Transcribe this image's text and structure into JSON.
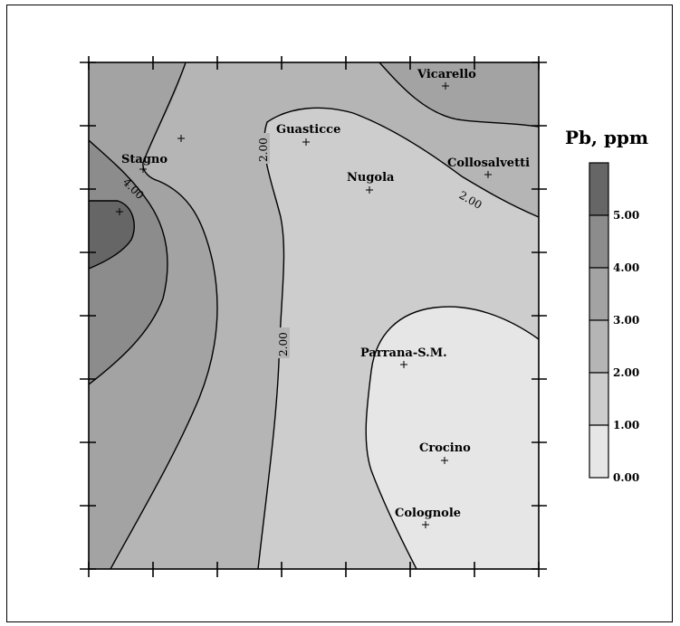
{
  "legend": {
    "title": "Pb, ppm",
    "levels": [
      {
        "label": "5.00",
        "color": "#666666"
      },
      {
        "label": "4.00",
        "color": "#8c8c8c"
      },
      {
        "label": "3.00",
        "color": "#a3a3a3"
      },
      {
        "label": "2.00",
        "color": "#b5b5b5"
      },
      {
        "label": "1.00",
        "color": "#cdcdcd"
      },
      {
        "label": "0.00",
        "color": "#e6e6e6"
      }
    ]
  },
  "contour_labels": {
    "c2_top": "2.00",
    "c2_mid": "2.00",
    "c2_right": "2.00",
    "c4": "4.00"
  },
  "places": [
    {
      "name": "Vicarello"
    },
    {
      "name": "Guasticce"
    },
    {
      "name": "Stagno"
    },
    {
      "name": "Nugola"
    },
    {
      "name": "Collosalvetti"
    },
    {
      "name": "Parrana-S.M."
    },
    {
      "name": "Crocino"
    },
    {
      "name": "Colognole"
    }
  ]
}
